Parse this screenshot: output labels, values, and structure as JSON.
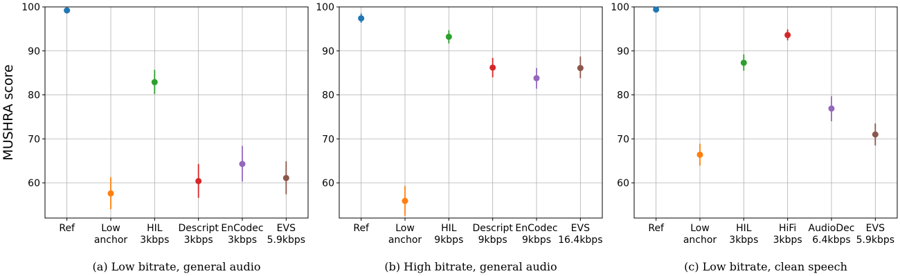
{
  "figure": {
    "ylabel": "MUSHRA score"
  },
  "chart_data": [
    {
      "type": "scatter",
      "caption": "(a) Low bitrate, general audio",
      "ylim": [
        52,
        100
      ],
      "yticks": [
        60,
        70,
        80,
        90,
        100
      ],
      "grid": true,
      "categories": [
        [
          "Ref"
        ],
        [
          "Low",
          "anchor"
        ],
        [
          "HIL",
          "3kbps"
        ],
        [
          "Descript",
          "3kbps"
        ],
        [
          "EnCodec",
          "3kbps"
        ],
        [
          "EVS",
          "5.9kbps"
        ]
      ],
      "points": [
        {
          "mean": 99.2,
          "low": 99.2,
          "high": 99.2,
          "color": "#1f77b4"
        },
        {
          "mean": 57.6,
          "low": 54.0,
          "high": 61.3,
          "color": "#ff7f0e"
        },
        {
          "mean": 82.9,
          "low": 80.2,
          "high": 85.7,
          "color": "#2ca02c"
        },
        {
          "mean": 60.4,
          "low": 56.6,
          "high": 64.3,
          "color": "#d62728"
        },
        {
          "mean": 64.3,
          "low": 60.3,
          "high": 68.4,
          "color": "#9467bd"
        },
        {
          "mean": 61.1,
          "low": 57.4,
          "high": 64.9,
          "color": "#8c564b"
        }
      ]
    },
    {
      "type": "scatter",
      "caption": "(b) High bitrate, general audio",
      "ylim": [
        52,
        100
      ],
      "yticks": [
        60,
        70,
        80,
        90,
        100
      ],
      "grid": true,
      "categories": [
        [
          "Ref"
        ],
        [
          "Low",
          "anchor"
        ],
        [
          "HIL",
          "9kbps"
        ],
        [
          "Descript",
          "9kbps"
        ],
        [
          "EnCodec",
          "9kbps"
        ],
        [
          "EVS",
          "16.4kbps"
        ]
      ],
      "points": [
        {
          "mean": 97.4,
          "low": 96.4,
          "high": 98.5,
          "color": "#1f77b4"
        },
        {
          "mean": 55.9,
          "low": 52.5,
          "high": 59.3,
          "color": "#ff7f0e"
        },
        {
          "mean": 93.2,
          "low": 91.7,
          "high": 94.7,
          "color": "#2ca02c"
        },
        {
          "mean": 86.2,
          "low": 84.0,
          "high": 88.4,
          "color": "#d62728"
        },
        {
          "mean": 83.8,
          "low": 81.4,
          "high": 86.1,
          "color": "#9467bd"
        },
        {
          "mean": 86.1,
          "low": 83.8,
          "high": 88.7,
          "color": "#8c564b"
        }
      ]
    },
    {
      "type": "scatter",
      "caption": "(c) Low bitrate, clean speech",
      "ylim": [
        52,
        100
      ],
      "yticks": [
        60,
        70,
        80,
        90,
        100
      ],
      "grid": true,
      "categories": [
        [
          "Ref"
        ],
        [
          "Low",
          "anchor"
        ],
        [
          "HIL",
          "3kbps"
        ],
        [
          "HiFi",
          "3kbps"
        ],
        [
          "AudioDec",
          "6.4kbps"
        ],
        [
          "EVS",
          "5.9kbps"
        ]
      ],
      "points": [
        {
          "mean": 99.4,
          "low": 99.4,
          "high": 99.4,
          "color": "#1f77b4"
        },
        {
          "mean": 66.4,
          "low": 63.9,
          "high": 68.9,
          "color": "#ff7f0e"
        },
        {
          "mean": 87.3,
          "low": 85.5,
          "high": 89.2,
          "color": "#2ca02c"
        },
        {
          "mean": 93.6,
          "low": 92.4,
          "high": 94.9,
          "color": "#d62728"
        },
        {
          "mean": 76.9,
          "low": 74.0,
          "high": 79.7,
          "color": "#9467bd"
        },
        {
          "mean": 71.0,
          "low": 68.5,
          "high": 73.5,
          "color": "#8c564b"
        }
      ]
    }
  ]
}
